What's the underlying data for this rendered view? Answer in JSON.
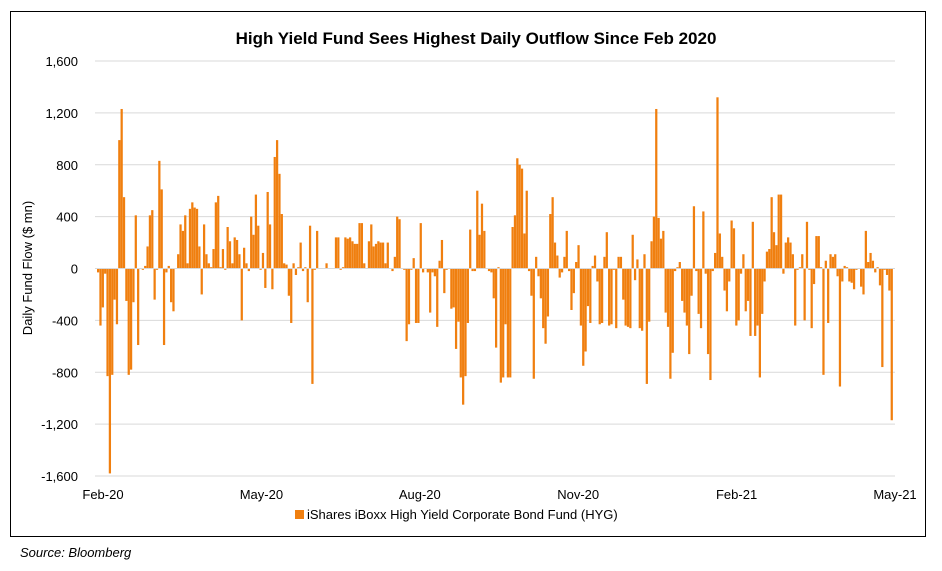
{
  "source_note": "Source: Bloomberg",
  "chart_data": {
    "type": "bar",
    "title": "High Yield Fund Sees Highest Daily Outflow Since Feb 2020",
    "xlabel": "",
    "ylabel": "Daily Fund Flow ($ mn)",
    "ylim": [
      -1600,
      1600
    ],
    "yticks": [
      1600,
      1200,
      800,
      400,
      0,
      -400,
      -800,
      -1200,
      -1600
    ],
    "ytick_labels": [
      "1,600",
      "1,200",
      "800",
      "400",
      "0",
      "-400",
      "-800",
      "-1,200",
      "-1,600"
    ],
    "xtick_labels": [
      "Feb-20",
      "May-20",
      "Aug-20",
      "Nov-20",
      "Feb-21",
      "May-21"
    ],
    "x_range": [
      "Feb-20",
      "May-21"
    ],
    "grid": true,
    "legend_position": "bottom",
    "series": [
      {
        "name": "iShares iBoxx High Yield Corporate Bond Fund (HYG)",
        "color": "#F07F0F",
        "values": [
          -30,
          -440,
          -300,
          -40,
          -830,
          -1580,
          -820,
          -240,
          -430,
          990,
          1230,
          550,
          -250,
          -820,
          -780,
          -260,
          410,
          -590,
          0,
          -10,
          20,
          170,
          410,
          450,
          -240,
          -10,
          830,
          610,
          -590,
          -30,
          20,
          -260,
          -330,
          0,
          110,
          340,
          290,
          410,
          40,
          460,
          510,
          470,
          460,
          170,
          -200,
          340,
          110,
          40,
          10,
          150,
          510,
          560,
          10,
          150,
          -10,
          320,
          210,
          40,
          240,
          220,
          110,
          -400,
          160,
          40,
          -20,
          400,
          260,
          570,
          330,
          -10,
          120,
          -150,
          590,
          340,
          -160,
          860,
          990,
          730,
          420,
          40,
          30,
          -210,
          -420,
          40,
          -50,
          10,
          200,
          -20,
          10,
          -260,
          330,
          -890,
          -10,
          290,
          0,
          0,
          0,
          40,
          0,
          0,
          0,
          240,
          240,
          -10,
          10,
          240,
          230,
          240,
          210,
          190,
          190,
          350,
          350,
          40,
          0,
          210,
          340,
          170,
          190,
          210,
          200,
          200,
          40,
          200,
          0,
          -20,
          90,
          400,
          380,
          0,
          -10,
          -560,
          -430,
          -10,
          80,
          -420,
          -420,
          350,
          -30,
          0,
          -30,
          -340,
          -30,
          -60,
          -450,
          60,
          220,
          -190,
          -10,
          0,
          -310,
          -300,
          -620,
          -410,
          -840,
          -1050,
          -830,
          -420,
          300,
          -20,
          -20,
          600,
          260,
          500,
          290,
          0,
          -20,
          -30,
          -230,
          -610,
          10,
          -880,
          -840,
          -430,
          -840,
          -840,
          320,
          410,
          850,
          800,
          770,
          270,
          600,
          -20,
          -210,
          -850,
          90,
          -60,
          -230,
          -460,
          -580,
          -370,
          420,
          550,
          200,
          100,
          -70,
          -30,
          90,
          290,
          -20,
          -320,
          -190,
          50,
          180,
          -440,
          -750,
          -640,
          -290,
          -420,
          20,
          100,
          -100,
          -430,
          -420,
          90,
          280,
          -440,
          -430,
          -10,
          -460,
          90,
          90,
          -240,
          -440,
          -450,
          -460,
          260,
          -90,
          70,
          -460,
          -480,
          110,
          -890,
          -410,
          210,
          400,
          1230,
          390,
          230,
          290,
          -340,
          -450,
          -850,
          -650,
          -20,
          10,
          50,
          -250,
          -340,
          -440,
          -660,
          -210,
          480,
          -20,
          -350,
          -460,
          440,
          -40,
          -660,
          -860,
          -20,
          120,
          1320,
          270,
          90,
          -170,
          -330,
          -100,
          370,
          310,
          -440,
          -400,
          -40,
          110,
          -330,
          -250,
          -520,
          360,
          -520,
          -440,
          -840,
          -350,
          -100,
          130,
          150,
          550,
          280,
          180,
          570,
          570,
          -40,
          200,
          240,
          200,
          110,
          -440,
          -10,
          10,
          110,
          -400,
          360,
          -10,
          -460,
          -120,
          250,
          250,
          10,
          -820,
          60,
          -420,
          110,
          90,
          110,
          -60,
          -910,
          -100,
          20,
          10,
          -100,
          -110,
          -160,
          -10,
          0,
          -140,
          -200,
          290,
          50,
          120,
          60,
          -30,
          10,
          -130,
          -760,
          -10,
          -50,
          -170,
          -1170
        ]
      }
    ]
  }
}
